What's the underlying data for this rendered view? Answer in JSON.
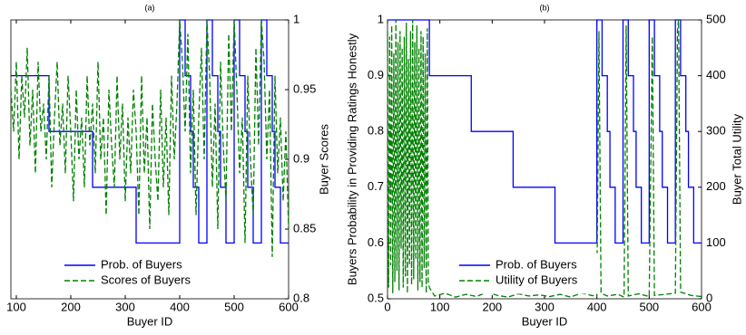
{
  "chart_data": [
    {
      "type": "line",
      "title": "(a)",
      "xlabel": "Buyer ID",
      "y2label": "Buyer Scores",
      "xlim": [
        90,
        600
      ],
      "xticks": [
        100,
        200,
        300,
        400,
        500,
        600
      ],
      "ylim": [
        0.5,
        1
      ],
      "y2lim": [
        0.8,
        1
      ],
      "y2ticks": [
        0.8,
        0.85,
        0.9,
        0.95,
        1
      ],
      "legend": "lower center",
      "series": [
        {
          "name": "Prob. of Buyers",
          "color": "#0000ff",
          "style": "solid",
          "axis": "y",
          "x": [
            90,
            160,
            160,
            240,
            240,
            320,
            320,
            400,
            400,
            410,
            410,
            420,
            420,
            425,
            425,
            435,
            435,
            450,
            450,
            460,
            460,
            470,
            470,
            475,
            475,
            485,
            485,
            500,
            500,
            510,
            510,
            520,
            520,
            525,
            525,
            535,
            535,
            550,
            550,
            560,
            560,
            570,
            570,
            575,
            575,
            585,
            585,
            600
          ],
          "values": [
            0.9,
            0.9,
            0.8,
            0.8,
            0.7,
            0.7,
            0.6,
            0.6,
            1,
            1,
            0.9,
            0.9,
            0.8,
            0.8,
            0.7,
            0.7,
            0.6,
            0.6,
            1,
            1,
            0.9,
            0.9,
            0.8,
            0.8,
            0.7,
            0.7,
            0.6,
            0.6,
            1,
            1,
            0.9,
            0.9,
            0.8,
            0.8,
            0.7,
            0.7,
            0.6,
            0.6,
            1,
            1,
            0.9,
            0.9,
            0.8,
            0.8,
            0.7,
            0.7,
            0.6,
            0.6
          ]
        },
        {
          "name": "Scores of Buyers",
          "color": "#008000",
          "style": "dashed",
          "axis": "y2",
          "x": [
            90,
            95,
            100,
            105,
            110,
            115,
            120,
            125,
            130,
            135,
            140,
            145,
            150,
            155,
            160,
            165,
            170,
            175,
            180,
            185,
            190,
            195,
            200,
            205,
            210,
            215,
            220,
            225,
            230,
            235,
            240,
            245,
            250,
            255,
            260,
            265,
            270,
            275,
            280,
            285,
            290,
            295,
            300,
            305,
            310,
            315,
            320,
            325,
            330,
            335,
            340,
            345,
            350,
            355,
            360,
            365,
            370,
            375,
            380,
            385,
            390,
            395,
            400,
            405,
            410,
            415,
            420,
            425,
            430,
            435,
            440,
            445,
            450,
            455,
            460,
            465,
            470,
            475,
            480,
            485,
            490,
            495,
            500,
            505,
            510,
            515,
            520,
            525,
            530,
            535,
            540,
            545,
            550,
            555,
            560,
            565,
            570,
            575,
            580,
            585,
            590,
            595,
            600
          ],
          "values": [
            0.95,
            0.92,
            0.97,
            0.9,
            0.96,
            0.93,
            0.98,
            0.91,
            0.95,
            0.89,
            0.97,
            0.92,
            0.94,
            0.9,
            0.96,
            0.88,
            0.93,
            0.97,
            0.91,
            0.94,
            0.89,
            0.96,
            0.92,
            0.87,
            0.95,
            0.9,
            0.93,
            0.88,
            0.96,
            0.91,
            0.94,
            0.89,
            0.97,
            0.9,
            0.93,
            0.86,
            0.95,
            0.91,
            0.88,
            0.96,
            0.9,
            0.94,
            0.87,
            0.93,
            0.89,
            0.95,
            0.92,
            0.86,
            0.96,
            0.89,
            0.93,
            0.85,
            0.94,
            0.9,
            0.87,
            0.95,
            0.88,
            0.93,
            0.86,
            0.96,
            0.9,
            0.94,
            1.0,
            0.97,
            0.92,
            0.99,
            0.89,
            0.95,
            0.86,
            0.93,
            0.98,
            0.9,
            1.0,
            0.96,
            0.88,
            0.94,
            0.85,
            0.97,
            0.91,
            0.87,
            0.99,
            0.92,
            1.0,
            0.95,
            0.89,
            0.93,
            0.84,
            0.96,
            0.9,
            0.86,
            0.98,
            0.91,
            1.0,
            0.97,
            0.9,
            0.95,
            0.83,
            0.96,
            0.89,
            0.93,
            0.87,
            0.92,
            0.85
          ]
        }
      ]
    },
    {
      "type": "line",
      "title": "(b)",
      "xlabel": "Buyer ID",
      "ylabel": "Buyers Probability in Providing Ratings Honestly",
      "y2label": "Buyer Total Utility",
      "xlim": [
        0,
        600
      ],
      "xticks": [
        0,
        100,
        200,
        300,
        400,
        500,
        600
      ],
      "ylim": [
        0.5,
        1
      ],
      "yticks": [
        0.5,
        0.6,
        0.7,
        0.8,
        0.9,
        1
      ],
      "y2lim": [
        0,
        500
      ],
      "y2ticks": [
        0,
        100,
        200,
        300,
        400,
        500
      ],
      "legend": "lower center",
      "series": [
        {
          "name": "Prob. of Buyers",
          "color": "#0000ff",
          "style": "solid",
          "axis": "y",
          "x": [
            0,
            80,
            80,
            160,
            160,
            240,
            240,
            320,
            320,
            400,
            400,
            410,
            410,
            420,
            420,
            425,
            425,
            435,
            435,
            450,
            450,
            460,
            460,
            470,
            470,
            475,
            475,
            485,
            485,
            500,
            500,
            510,
            510,
            520,
            520,
            525,
            525,
            535,
            535,
            550,
            550,
            560,
            560,
            570,
            570,
            575,
            575,
            585,
            585,
            600
          ],
          "values": [
            1,
            1,
            0.9,
            0.9,
            0.8,
            0.8,
            0.7,
            0.7,
            0.6,
            0.6,
            1,
            1,
            0.9,
            0.9,
            0.8,
            0.8,
            0.7,
            0.7,
            0.6,
            0.6,
            1,
            1,
            0.9,
            0.9,
            0.8,
            0.8,
            0.7,
            0.7,
            0.6,
            0.6,
            1,
            1,
            0.9,
            0.9,
            0.8,
            0.8,
            0.7,
            0.7,
            0.6,
            0.6,
            1,
            1,
            0.9,
            0.9,
            0.8,
            0.8,
            0.7,
            0.7,
            0.6,
            0.6
          ]
        },
        {
          "name": "Utility of Buyers",
          "color": "#008000",
          "style": "dashed",
          "axis": "y2",
          "x": [
            0,
            2,
            4,
            6,
            8,
            10,
            12,
            14,
            16,
            18,
            20,
            22,
            24,
            26,
            28,
            30,
            32,
            34,
            36,
            38,
            40,
            42,
            44,
            46,
            48,
            50,
            52,
            54,
            56,
            58,
            60,
            62,
            64,
            66,
            68,
            70,
            72,
            74,
            76,
            78,
            80,
            90,
            110,
            130,
            150,
            170,
            190,
            210,
            230,
            250,
            270,
            290,
            310,
            330,
            350,
            370,
            390,
            400,
            404,
            408,
            420,
            440,
            452,
            456,
            460,
            480,
            500,
            506,
            510,
            530,
            550,
            554,
            556,
            560,
            580,
            600
          ],
          "values": [
            480,
            20,
            470,
            60,
            490,
            10,
            440,
            30,
            500,
            50,
            460,
            15,
            480,
            90,
            450,
            20,
            470,
            40,
            495,
            10,
            430,
            60,
            480,
            25,
            500,
            35,
            460,
            70,
            490,
            15,
            450,
            30,
            480,
            20,
            470,
            55,
            440,
            10,
            485,
            30,
            20,
            5,
            10,
            3,
            8,
            4,
            12,
            6,
            3,
            9,
            5,
            7,
            4,
            8,
            3,
            10,
            6,
            5,
            480,
            10,
            5,
            8,
            3,
            490,
            5,
            9,
            4,
            470,
            6,
            8,
            10,
            480,
            500,
            12,
            6,
            4
          ]
        }
      ]
    }
  ]
}
